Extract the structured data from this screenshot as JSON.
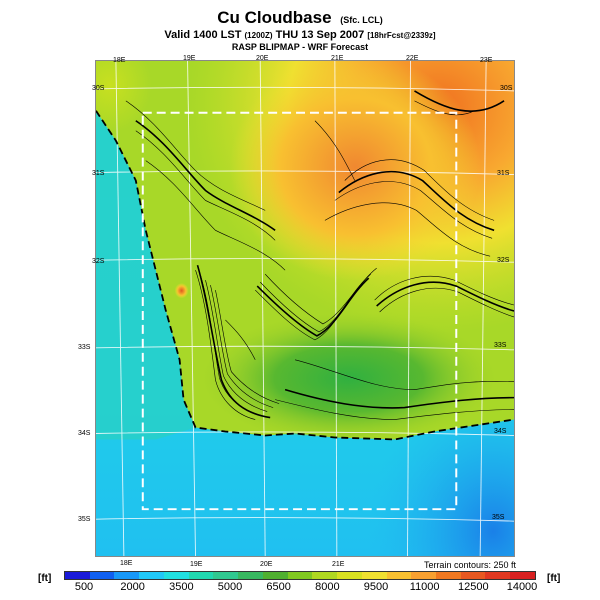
{
  "header": {
    "title": "Cu Cloudbase",
    "title_sub": "(Sfc. LCL)",
    "line2_main": "Valid 1400 LST",
    "line2_z": "(1200Z)",
    "line2_date": "THU 13 Sep 2007",
    "line2_fcst": "[18hrFcst@2339z]",
    "line3": "RASP BLIPMAP - WRF Forecast"
  },
  "map": {
    "top_lon_labels": [
      "18E",
      "19E",
      "20E",
      "21E",
      "22E",
      "23E"
    ],
    "bottom_lon_labels": [
      "18E",
      "19E",
      "20E",
      "21E"
    ],
    "left_lat_labels": [
      "30S",
      "31S",
      "32S",
      "33S",
      "34S",
      "35S"
    ],
    "right_lat_labels": [
      "30S",
      "31S",
      "32S",
      "33S",
      "34S",
      "35S"
    ],
    "terrain_note": "Terrain contours: 250 ft"
  },
  "legend": {
    "unit_left": "[ft]",
    "unit_right": "[ft]",
    "labels": [
      "500",
      "2000",
      "3500",
      "5000",
      "6500",
      "8000",
      "9500",
      "11000",
      "12500",
      "14000"
    ],
    "colors": [
      "#1a1ad8",
      "#1060f0",
      "#1898f8",
      "#20c8f8",
      "#20e0e0",
      "#20d8b0",
      "#30c890",
      "#38b860",
      "#50b030",
      "#80c820",
      "#b0d820",
      "#d8e020",
      "#f0e030",
      "#f8c030",
      "#f8a030",
      "#f07820",
      "#e85820",
      "#e03820",
      "#d82020"
    ]
  }
}
